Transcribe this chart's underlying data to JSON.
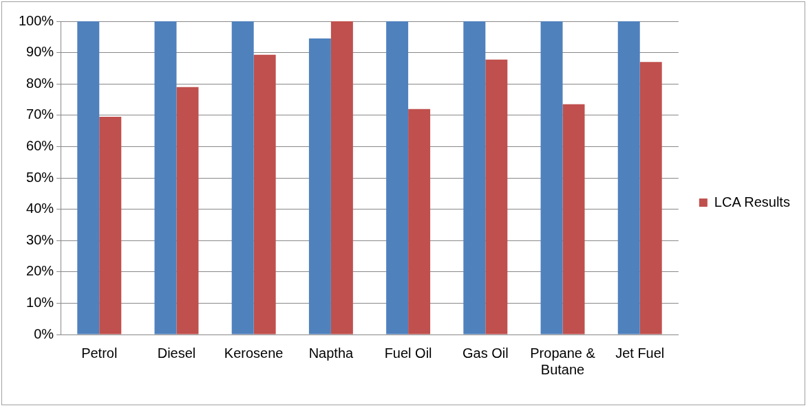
{
  "chart_data": {
    "type": "bar",
    "categories": [
      "Petrol",
      "Diesel",
      "Kerosene",
      "Naptha",
      "Fuel Oil",
      "Gas Oil",
      "Propane & Butane",
      "Jet Fuel"
    ],
    "series": [
      {
        "color": "#4f81bd",
        "values": [
          100,
          100,
          100,
          94.5,
          100,
          100,
          100,
          100
        ]
      },
      {
        "name": "LCA Results",
        "color": "#c0504d",
        "values": [
          69.5,
          79,
          89.3,
          100,
          72,
          87.8,
          73.5,
          87
        ]
      }
    ],
    "ylim": [
      0,
      100
    ],
    "yticks": [
      {
        "value": 0,
        "label": "0%"
      },
      {
        "value": 10,
        "label": "10%"
      },
      {
        "value": 20,
        "label": "20%"
      },
      {
        "value": 30,
        "label": "30%"
      },
      {
        "value": 40,
        "label": "40%"
      },
      {
        "value": 50,
        "label": "50%"
      },
      {
        "value": 60,
        "label": "60%"
      },
      {
        "value": 70,
        "label": "70%"
      },
      {
        "value": 80,
        "label": "80%"
      },
      {
        "value": 90,
        "label": "90%"
      },
      {
        "value": 100,
        "label": "100%"
      }
    ],
    "grid": "y",
    "legend": "right"
  }
}
